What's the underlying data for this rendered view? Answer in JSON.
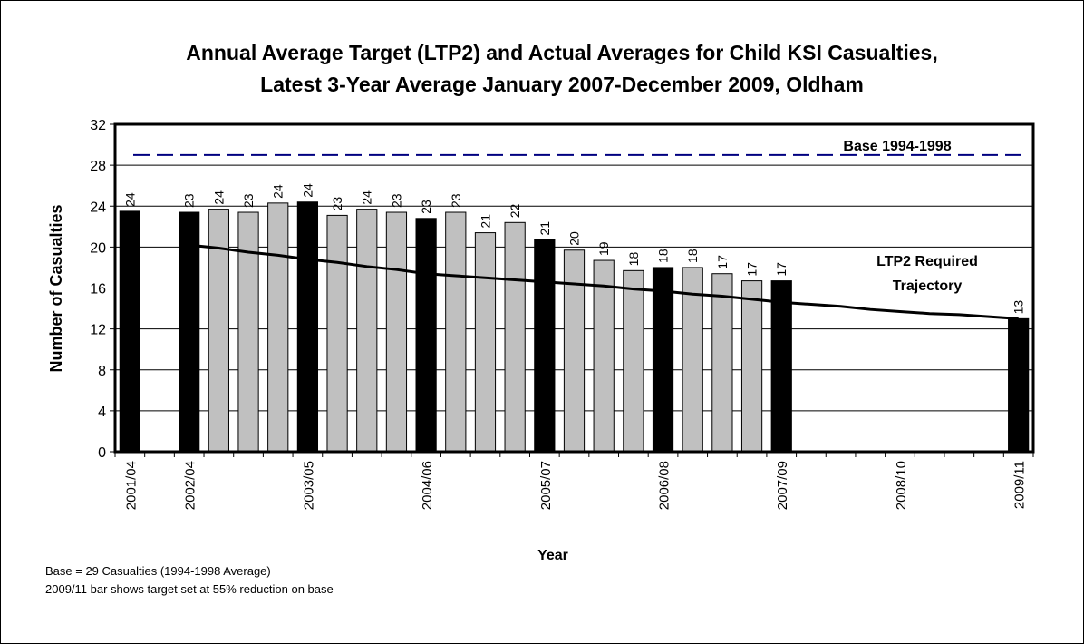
{
  "chart_data": {
    "type": "bar",
    "title": [
      "Annual Average Target (LTP2) and Actual Averages for Child KSI Casualties,",
      "Latest 3-Year Average January 2007-December 2009, Oldham"
    ],
    "y_label": "Number of Casualties",
    "x_label": "Year",
    "categories": [
      "2001/04",
      null,
      "2002/04",
      null,
      null,
      null,
      "2003/05",
      null,
      null,
      null,
      "2004/06",
      null,
      null,
      null,
      "2005/07",
      null,
      null,
      null,
      "2006/08",
      null,
      null,
      null,
      "2007/09",
      null,
      null,
      null,
      "2008/10",
      null,
      null,
      null,
      "2009/11"
    ],
    "values": [
      23.5,
      null,
      23.4,
      23.7,
      23.4,
      24.3,
      24.4,
      23.1,
      23.7,
      23.4,
      22.8,
      23.4,
      21.4,
      22.4,
      20.7,
      19.7,
      18.7,
      17.7,
      18.0,
      18.0,
      17.4,
      16.7,
      16.7,
      null,
      null,
      null,
      null,
      null,
      null,
      null,
      13.0
    ],
    "value_labels": [
      "24",
      null,
      "23",
      "24",
      "23",
      "24",
      "24",
      "23",
      "24",
      "23",
      "23",
      "23",
      "21",
      "22",
      "21",
      "20",
      "19",
      "18",
      "18",
      "18",
      "17",
      "17",
      "17",
      null,
      null,
      null,
      null,
      null,
      null,
      null,
      "13"
    ],
    "colors": [
      "#000000",
      null,
      "#000000",
      "#c0c0c0",
      "#c0c0c0",
      "#c0c0c0",
      "#000000",
      "#c0c0c0",
      "#c0c0c0",
      "#c0c0c0",
      "#000000",
      "#c0c0c0",
      "#c0c0c0",
      "#c0c0c0",
      "#000000",
      "#c0c0c0",
      "#c0c0c0",
      "#c0c0c0",
      "#000000",
      "#c0c0c0",
      "#c0c0c0",
      "#c0c0c0",
      "#000000",
      null,
      null,
      null,
      null,
      null,
      null,
      null,
      "#000000"
    ],
    "trajectory": {
      "label": [
        "LTP2 Required",
        "Trajectory"
      ],
      "color": "#000000",
      "values": [
        null,
        null,
        20.2,
        19.9,
        19.5,
        19.2,
        18.8,
        18.5,
        18.1,
        17.8,
        17.4,
        17.2,
        17.0,
        16.8,
        16.6,
        16.4,
        16.2,
        15.9,
        15.7,
        15.4,
        15.2,
        14.9,
        14.6,
        14.4,
        14.2,
        13.9,
        13.7,
        13.5,
        13.4,
        13.2,
        13.0
      ]
    },
    "base": {
      "label": "Base 1994-1998",
      "value": 29,
      "color": "#000080"
    },
    "ylim": [
      0,
      32
    ],
    "yticks": [
      0,
      4,
      8,
      12,
      16,
      20,
      24,
      28,
      32
    ],
    "grid": true,
    "notes": [
      "Base = 29 Casualties (1994-1998 Average)",
      "2009/11 bar shows target set at 55% reduction on base"
    ]
  }
}
